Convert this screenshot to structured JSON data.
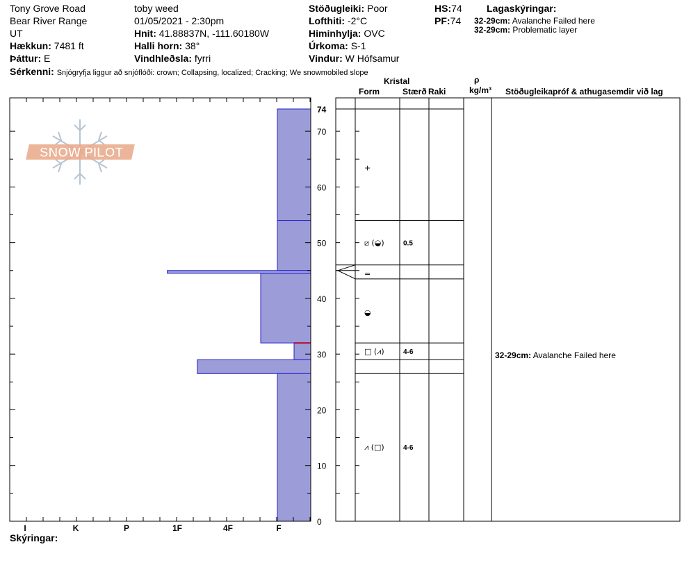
{
  "header": {
    "location": "Tony Grove Road",
    "range": "Bear River Range",
    "state": "UT",
    "observer": "toby weed",
    "datetime": "01/05/2021 - 2:30pm",
    "elevation_label": "Hækkun:",
    "elevation": "7481 ft",
    "aspect_label": "Þáttur:",
    "aspect": "E",
    "coords_label": "Hnit:",
    "coords": "41.88837N, -111.60180W",
    "slope_label": "Halli horn:",
    "slope": "38°",
    "wind_loading_label": "Vindhleðsla:",
    "wind_loading": "fyrri",
    "stability_label": "Stöðugleiki:",
    "stability": "Poor",
    "air_temp_label": "Lofthiti:",
    "air_temp": "-2°C",
    "sky_label": "Himinhylja:",
    "sky": "OVC",
    "precip_label": "Úrkoma:",
    "precip": "S-1",
    "wind_label": "Vindur:",
    "wind": "W Hófsamur",
    "hs_label": "HS:",
    "hs": "74",
    "pf_label": "PF:",
    "pf": "74",
    "layer_notes_label": "Lagaskýringar:",
    "layer_notes": [
      {
        "depth": "32-29cm:",
        "text": "Avalanche Failed here"
      },
      {
        "depth": "32-29cm:",
        "text": "Problematic layer"
      }
    ],
    "features_label": "Sérkenni:",
    "features": "Snjógryfja liggur að snjóflóði: crown; Collapsing, localized; Cracking; We snowmobiled slope"
  },
  "columns": {
    "crystal": "Kristal",
    "form": "Form",
    "size": "Stærð",
    "moisture": "Raki",
    "rho": "ρ",
    "density_unit": "kg/m³",
    "tests": "Stöðugleikapróf & athugasemdir við lag"
  },
  "logo_text": "SNOW PILOT",
  "chart_data": {
    "type": "bar",
    "orientation": "horizontal",
    "hardness_scale": [
      "I",
      "K",
      "P",
      "1F",
      "4F",
      "F"
    ],
    "y_ticks": [
      0,
      10,
      20,
      30,
      40,
      50,
      60,
      70
    ],
    "y_top_label": "74",
    "ylim": [
      0,
      74
    ],
    "layers": [
      {
        "top": 74,
        "bottom": 54,
        "hardness": "F",
        "hardness_value": 1.0
      },
      {
        "top": 54,
        "bottom": 45,
        "hardness": "F",
        "hardness_value": 1.0
      },
      {
        "top": 45,
        "bottom": 44.5,
        "hardness": "1F",
        "hardness_value": 4.3
      },
      {
        "top": 44.5,
        "bottom": 32,
        "hardness": "F+",
        "hardness_value": 1.5
      },
      {
        "top": 32,
        "bottom": 29,
        "hardness": "F-",
        "hardness_value": 0.5
      },
      {
        "top": 29,
        "bottom": 26.5,
        "hardness": "4F-",
        "hardness_value": 3.4
      },
      {
        "top": 26.5,
        "bottom": 0,
        "hardness": "F",
        "hardness_value": 1.0
      }
    ],
    "crystal_rows": [
      {
        "depth": 63.5,
        "form": "+",
        "size": ""
      },
      {
        "depth": 50,
        "form": "⧄ (◒)",
        "size": "0.5"
      },
      {
        "depth": 44.5,
        "form": "=",
        "size": ""
      },
      {
        "depth": 37.5,
        "form": "◒",
        "size": ""
      },
      {
        "depth": 30.5,
        "form": "□ (⩘)",
        "size": "4-6"
      },
      {
        "depth": 13.3,
        "form": "⩘ (□)",
        "size": "4-6"
      }
    ],
    "boundaries": [
      74,
      54,
      46,
      43.5,
      32,
      29,
      26.5
    ],
    "test_notes": [
      {
        "depth": 30.5,
        "depth_label": "32-29cm:",
        "text": "Avalanche Failed here"
      }
    ]
  },
  "legend_label": "Skýringar:",
  "colors": {
    "fill": "#9c9cd8",
    "edge": "#2222cc",
    "weak": "#b01030"
  }
}
